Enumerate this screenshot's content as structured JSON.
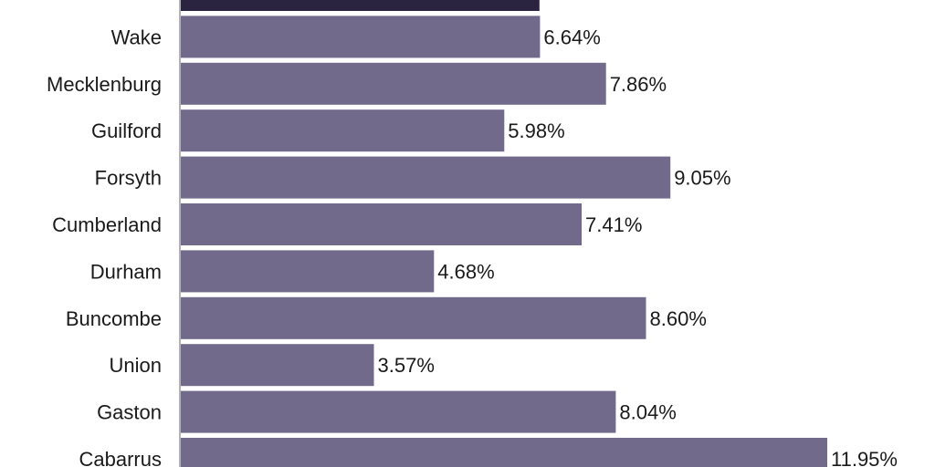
{
  "chart_data": {
    "type": "bar",
    "orientation": "horizontal",
    "categories": [
      "",
      "Wake",
      "Mecklenburg",
      "Guilford",
      "Forsyth",
      "Cumberland",
      "Durham",
      "Buncombe",
      "Union",
      "Gaston",
      "Cabarrus"
    ],
    "values": [
      null,
      6.64,
      7.86,
      5.98,
      9.05,
      7.41,
      4.68,
      8.6,
      3.57,
      8.04,
      11.95
    ],
    "value_labels": [
      "",
      "6.64%",
      "7.86%",
      "5.98%",
      "9.05%",
      "7.41%",
      "4.68%",
      "8.60%",
      "3.57%",
      "8.04%",
      "11.95%"
    ],
    "highlighted_category_index": 0,
    "xlim": [
      0,
      12.2
    ],
    "colors": {
      "bar": "#716a8a",
      "highlight": "#2a2440",
      "axis": "#999999",
      "text": "#1a1a1a"
    },
    "grid": false,
    "legend": "none"
  }
}
